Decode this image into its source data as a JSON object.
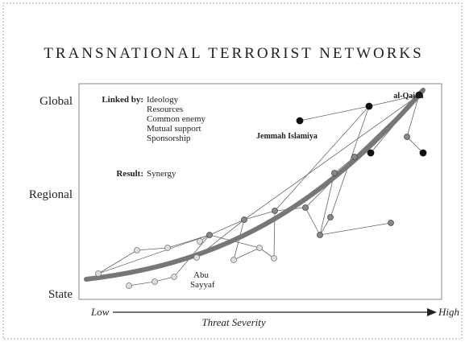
{
  "title": "TRANSNATIONAL TERRORIST NETWORKS",
  "y_levels": [
    "Global",
    "Regional",
    "State"
  ],
  "x_axis": {
    "low": "Low",
    "high": "High",
    "label": "Threat Severity"
  },
  "legend": {
    "linked_by_label": "Linked by:",
    "linked_by": [
      "Ideology",
      "Resources",
      "Common enemy",
      "Mutual support",
      "Sponsorship"
    ],
    "result_label": "Result:",
    "result": "Synergy"
  },
  "node_labels": {
    "al_qaida": "al-Qaida",
    "jemmah_islamiya": "Jemmah Islamiya",
    "abu_sayyaf": [
      "Abu",
      "Sayyaf"
    ]
  }
}
